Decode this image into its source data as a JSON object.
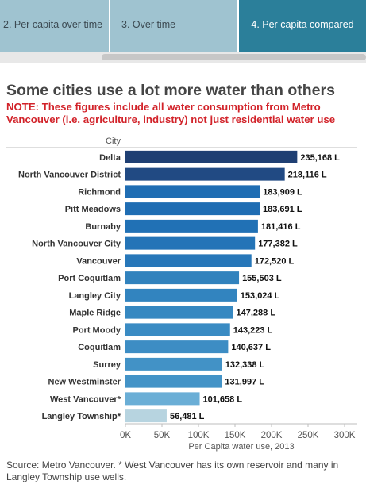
{
  "tabs": [
    {
      "label": "2. Per capita over time"
    },
    {
      "label": "3. Over time"
    },
    {
      "label": "4. Per capita compared"
    }
  ],
  "title": "Some cities use a lot more water than others",
  "note": "NOTE: These figures include all water consumption from Metro Vancouver (i.e. agriculture, industry) not just residential water use",
  "footer": "Source: Metro Vancouver.  * West Vancouver has its own reservoir and many in Langley Township use wells.",
  "chart_data": {
    "type": "bar",
    "orientation": "horizontal",
    "category_header": "City",
    "xlabel": "Per Capita water use, 2013",
    "xlim": [
      0,
      300000
    ],
    "ticks": [
      {
        "value": 0,
        "label": "0K"
      },
      {
        "value": 50000,
        "label": "50K"
      },
      {
        "value": 100000,
        "label": "100K"
      },
      {
        "value": 150000,
        "label": "150K"
      },
      {
        "value": 200000,
        "label": "200K"
      },
      {
        "value": 250000,
        "label": "250K"
      },
      {
        "value": 300000,
        "label": "300K"
      }
    ],
    "grid": false,
    "bars": [
      {
        "category": "Delta",
        "value": 235168,
        "label": "235,168 L",
        "color": "#1f3f73"
      },
      {
        "category": "North Vancouver District",
        "value": 218116,
        "label": "218,116 L",
        "color": "#214a83"
      },
      {
        "category": "Richmond",
        "value": 183909,
        "label": "183,909 L",
        "color": "#1f6db3"
      },
      {
        "category": "Pitt Meadows",
        "value": 183691,
        "label": "183,691 L",
        "color": "#1f6db3"
      },
      {
        "category": "Burnaby",
        "value": 181416,
        "label": "181,416 L",
        "color": "#2171b5"
      },
      {
        "category": "North Vancouver City",
        "value": 177382,
        "label": "177,382 L",
        "color": "#2474b7"
      },
      {
        "category": "Vancouver",
        "value": 172520,
        "label": "172,520 L",
        "color": "#2777b9"
      },
      {
        "category": "Port Coquitlam",
        "value": 155503,
        "label": "155,503 L",
        "color": "#3182bd"
      },
      {
        "category": "Langley City",
        "value": 153024,
        "label": "153,024 L",
        "color": "#3284bf"
      },
      {
        "category": "Maple Ridge",
        "value": 147288,
        "label": "147,288 L",
        "color": "#3688c1"
      },
      {
        "category": "Port Moody",
        "value": 143223,
        "label": "143,223 L",
        "color": "#3a8bc3"
      },
      {
        "category": "Coquitlam",
        "value": 140637,
        "label": "140,637 L",
        "color": "#3d8dc4"
      },
      {
        "category": "Surrey",
        "value": 132338,
        "label": "132,338 L",
        "color": "#4292c6"
      },
      {
        "category": "New Westminster",
        "value": 131997,
        "label": "131,997 L",
        "color": "#4393c7"
      },
      {
        "category": "West Vancouver*",
        "value": 101658,
        "label": "101,658 L",
        "color": "#6aaed6"
      },
      {
        "category": "Langley Township*",
        "value": 56481,
        "label": "56,481 L",
        "color": "#b7d4e0"
      }
    ]
  }
}
